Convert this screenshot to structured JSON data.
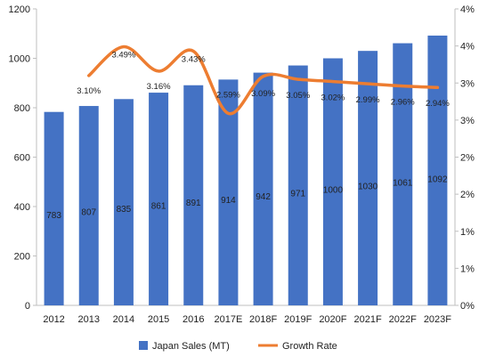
{
  "chart_data": {
    "type": "bar",
    "categories": [
      "2012",
      "2013",
      "2014",
      "2015",
      "2016",
      "2017E",
      "2018F",
      "2019F",
      "2020F",
      "2021F",
      "2022F",
      "2023F"
    ],
    "series": [
      {
        "name": "Japan Sales (MT)",
        "kind": "bar",
        "axis": "left",
        "color": "#4472C4",
        "values": [
          783,
          807,
          835,
          861,
          891,
          914,
          942,
          971,
          1000,
          1030,
          1061,
          1092
        ],
        "labels": [
          "783",
          "807",
          "835",
          "861",
          "891",
          "914",
          "942",
          "971",
          "1000",
          "1030",
          "1061",
          "1092"
        ]
      },
      {
        "name": "Growth Rate",
        "kind": "line",
        "axis": "right",
        "color": "#ED7D31",
        "values": [
          null,
          3.1,
          3.49,
          3.16,
          3.43,
          2.59,
          3.09,
          3.05,
          3.02,
          2.99,
          2.96,
          2.94
        ],
        "labels": [
          "",
          "3.10%",
          "3.49%",
          "3.16%",
          "3.43%",
          "2.59%",
          "3.09%",
          "3.05%",
          "3.02%",
          "2.99%",
          "2.96%",
          "2.94%"
        ]
      }
    ],
    "y_left": {
      "ylim": [
        0,
        1200
      ],
      "ticks": [
        0,
        200,
        400,
        600,
        800,
        1000,
        1200
      ],
      "tick_labels": [
        "0",
        "200",
        "400",
        "600",
        "800",
        "1000",
        "1200"
      ]
    },
    "y_right": {
      "ylim": [
        0,
        4
      ],
      "ticks": [
        0,
        0.5,
        1,
        1.5,
        2,
        2.5,
        3,
        3.5,
        4
      ],
      "tick_labels": [
        "0%",
        "1%",
        "1%",
        "2%",
        "2%",
        "3%",
        "3%",
        "4%",
        "4%"
      ]
    },
    "title": "",
    "xlabel": "",
    "ylabel": "",
    "grid": false,
    "legend_position": "bottom"
  }
}
